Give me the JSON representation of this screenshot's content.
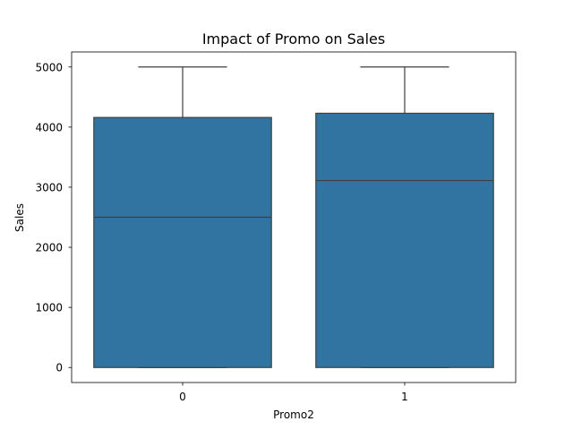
{
  "chart_data": {
    "type": "box",
    "title": "Impact of Promo on Sales",
    "xlabel": "Promo2",
    "ylabel": "Sales",
    "categories": [
      "0",
      "1"
    ],
    "boxes": [
      {
        "category": "0",
        "whisker_low": 0,
        "q1": 0,
        "median": 2500,
        "q3": 4160,
        "whisker_high": 5000
      },
      {
        "category": "1",
        "whisker_low": 0,
        "q1": 0,
        "median": 3110,
        "q3": 4230,
        "whisker_high": 5000
      }
    ],
    "ylim": [
      -250,
      5250
    ],
    "yticks": [
      0,
      1000,
      2000,
      3000,
      4000,
      5000
    ],
    "grid": false,
    "colors": {
      "box_fill": "#3274a1",
      "line": "#3f3f3f"
    }
  }
}
